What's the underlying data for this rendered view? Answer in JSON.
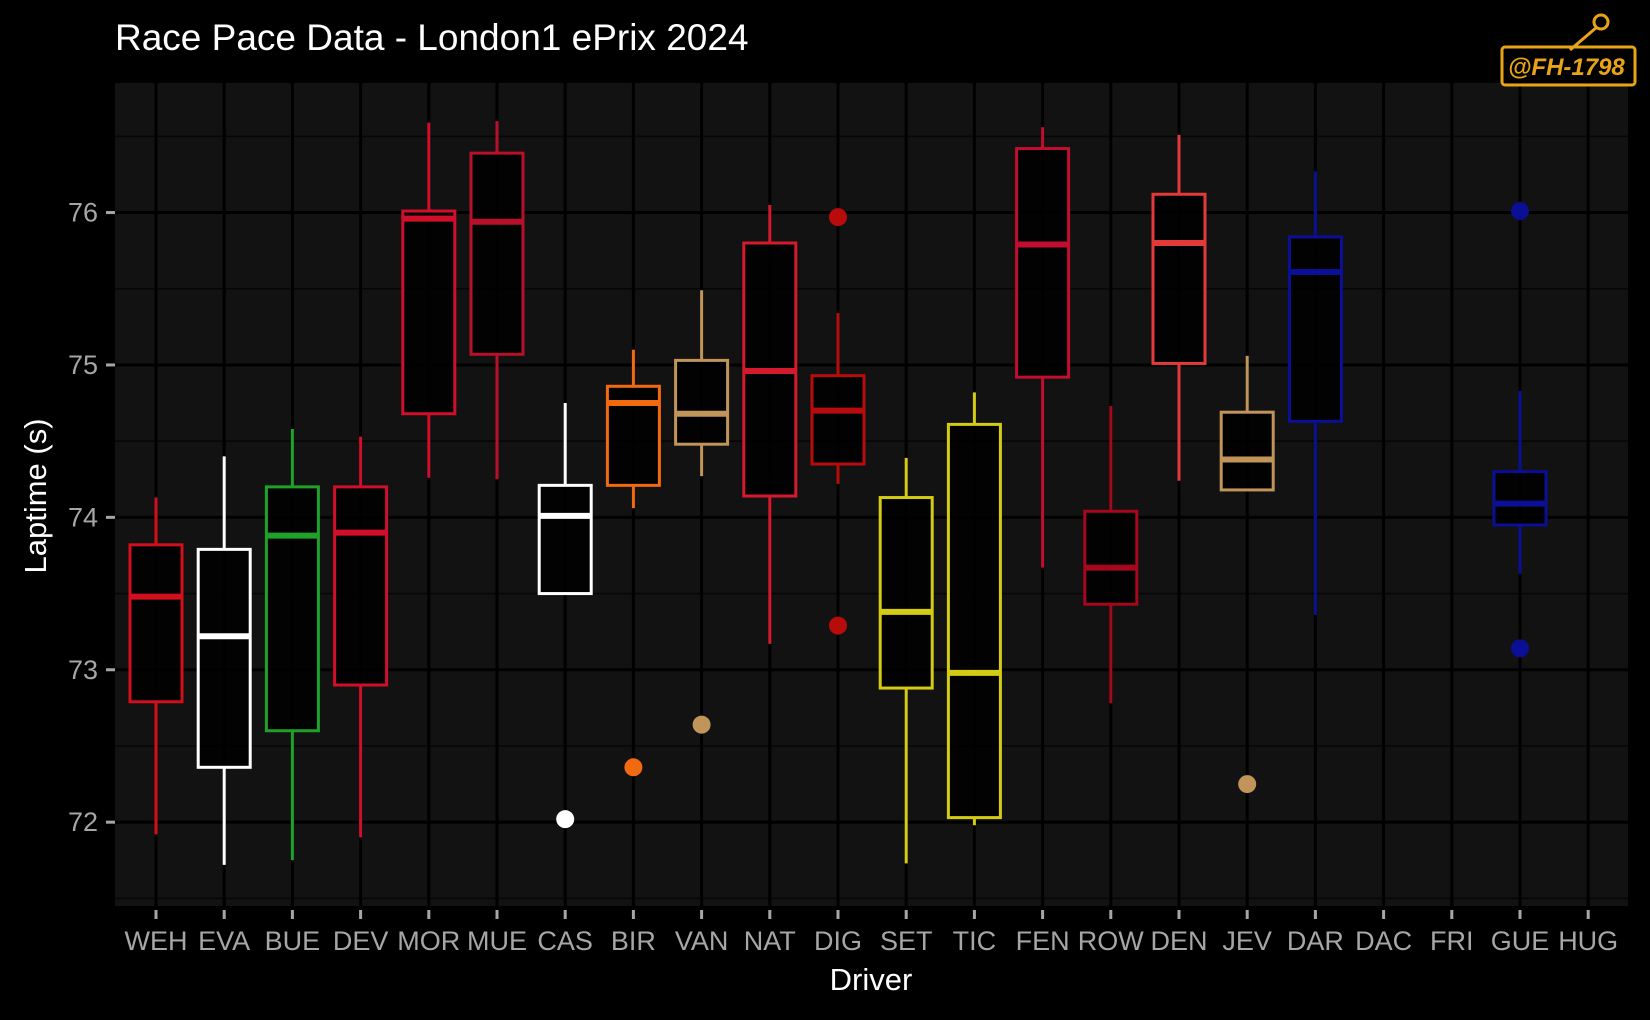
{
  "watermark": {
    "text": "@FH-1798"
  },
  "chart_data": {
    "type": "box",
    "title": "Race Pace Data - London1 ePrix 2024",
    "xlabel": "Driver",
    "ylabel": "Laptime (s)",
    "ylim": [
      71.45,
      76.85
    ],
    "yticks": [
      72,
      73,
      74,
      75,
      76
    ],
    "grid": true,
    "background": "#121212",
    "grid_major_color": "#000000",
    "categories": [
      "WEH",
      "EVA",
      "BUE",
      "DEV",
      "MOR",
      "MUE",
      "CAS",
      "BIR",
      "VAN",
      "NAT",
      "DIG",
      "SET",
      "TIC",
      "FEN",
      "ROW",
      "DEN",
      "JEV",
      "DAR",
      "DAC",
      "FRI",
      "GUE",
      "HUG"
    ],
    "series": [
      {
        "driver": "WEH",
        "color": "#d10f1d",
        "min": 71.92,
        "q1": 72.79,
        "median": 73.48,
        "q3": 73.82,
        "max": 74.13,
        "outliers": []
      },
      {
        "driver": "EVA",
        "color": "#ffffff",
        "min": 71.72,
        "q1": 72.36,
        "median": 73.22,
        "q3": 73.79,
        "max": 74.4,
        "outliers": []
      },
      {
        "driver": "BUE",
        "color": "#1fa22a",
        "min": 71.75,
        "q1": 72.6,
        "median": 73.88,
        "q3": 74.2,
        "max": 74.58,
        "outliers": []
      },
      {
        "driver": "DEV",
        "color": "#d10f2a",
        "min": 71.9,
        "q1": 72.9,
        "median": 73.9,
        "q3": 74.2,
        "max": 74.53,
        "outliers": []
      },
      {
        "driver": "MOR",
        "color": "#d10f2a",
        "min": 74.26,
        "q1": 74.68,
        "median": 75.96,
        "q3": 76.01,
        "max": 76.59,
        "outliers": []
      },
      {
        "driver": "MUE",
        "color": "#b8102a",
        "min": 74.25,
        "q1": 75.07,
        "median": 75.94,
        "q3": 76.39,
        "max": 76.6,
        "outliers": []
      },
      {
        "driver": "CAS",
        "color": "#ffffff",
        "min": 73.5,
        "q1": 73.5,
        "median": 74.01,
        "q3": 74.21,
        "max": 74.75,
        "outliers": [
          72.02
        ]
      },
      {
        "driver": "BIR",
        "color": "#f26a10",
        "min": 74.06,
        "q1": 74.21,
        "median": 74.75,
        "q3": 74.86,
        "max": 75.1,
        "outliers": [
          72.36
        ]
      },
      {
        "driver": "VAN",
        "color": "#c1955a",
        "min": 74.27,
        "q1": 74.48,
        "median": 74.68,
        "q3": 75.03,
        "max": 75.49,
        "outliers": [
          72.64
        ]
      },
      {
        "driver": "NAT",
        "color": "#d41a2c",
        "min": 73.17,
        "q1": 74.14,
        "median": 74.96,
        "q3": 75.8,
        "max": 76.05,
        "outliers": []
      },
      {
        "driver": "DIG",
        "color": "#b80b0b",
        "min": 74.22,
        "q1": 74.35,
        "median": 74.7,
        "q3": 74.93,
        "max": 75.34,
        "outliers": [
          75.97,
          73.29
        ]
      },
      {
        "driver": "SET",
        "color": "#d4cc13",
        "min": 71.73,
        "q1": 72.88,
        "median": 73.38,
        "q3": 74.13,
        "max": 74.39,
        "outliers": []
      },
      {
        "driver": "TIC",
        "color": "#d4cc13",
        "min": 71.98,
        "q1": 72.03,
        "median": 72.98,
        "q3": 74.61,
        "max": 74.82,
        "outliers": []
      },
      {
        "driver": "FEN",
        "color": "#c20e2e",
        "min": 73.67,
        "q1": 74.92,
        "median": 75.79,
        "q3": 76.42,
        "max": 76.56,
        "outliers": []
      },
      {
        "driver": "ROW",
        "color": "#a5081c",
        "min": 72.78,
        "q1": 73.43,
        "median": 73.67,
        "q3": 74.04,
        "max": 74.73,
        "outliers": []
      },
      {
        "driver": "DEN",
        "color": "#e23a38",
        "min": 74.24,
        "q1": 75.01,
        "median": 75.8,
        "q3": 76.12,
        "max": 76.51,
        "outliers": []
      },
      {
        "driver": "JEV",
        "color": "#c1955a",
        "min": 74.18,
        "q1": 74.18,
        "median": 74.38,
        "q3": 74.69,
        "max": 75.06,
        "outliers": [
          72.25
        ]
      },
      {
        "driver": "DAR",
        "color": "#0b0f96",
        "min": 73.36,
        "q1": 74.63,
        "median": 75.61,
        "q3": 75.84,
        "max": 76.27,
        "outliers": []
      },
      {
        "driver": "DAC",
        "color": "",
        "outliers": []
      },
      {
        "driver": "FRI",
        "color": "",
        "outliers": []
      },
      {
        "driver": "GUE",
        "color": "#0b0f96",
        "min": 73.63,
        "q1": 73.95,
        "median": 74.09,
        "q3": 74.3,
        "max": 74.83,
        "outliers": [
          76.01,
          73.14
        ]
      },
      {
        "driver": "HUG",
        "color": "",
        "outliers": []
      }
    ]
  }
}
